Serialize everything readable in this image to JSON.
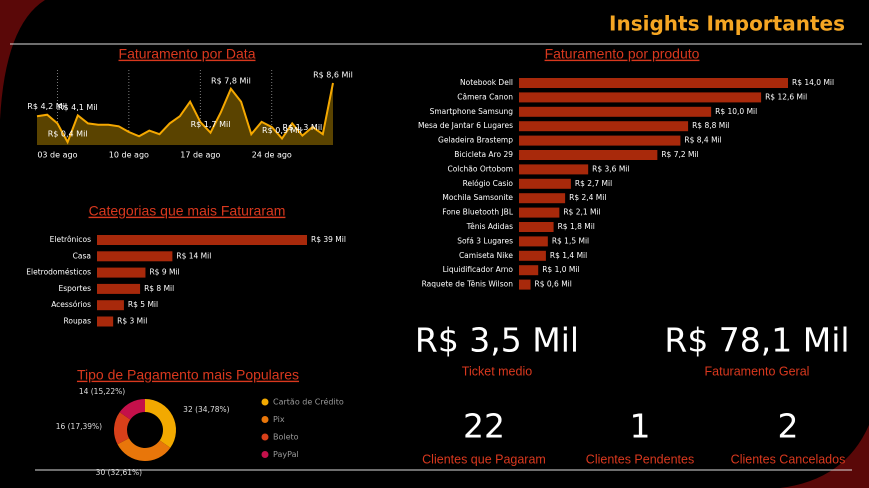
{
  "header": {
    "title": "Insights Importantes"
  },
  "chart_data": [
    {
      "type": "area",
      "title": "Faturamento por Data",
      "color": "#f5a800",
      "fill": "#5a4300",
      "categories": [
        null,
        null,
        "03 de ago",
        null,
        null,
        null,
        null,
        null,
        null,
        "10 de ago",
        null,
        null,
        null,
        null,
        null,
        null,
        "17 de ago",
        null,
        null,
        null,
        null,
        null,
        null,
        "24 de ago",
        null,
        null,
        null,
        null,
        null,
        null
      ],
      "values": [
        4.0,
        4.2,
        3.0,
        0.4,
        4.1,
        3.0,
        2.8,
        2.8,
        2.6,
        1.8,
        1.2,
        2.0,
        1.5,
        3.0,
        4.0,
        6.0,
        3.2,
        1.7,
        4.5,
        7.8,
        6.0,
        1.5,
        3.2,
        2.5,
        0.9,
        3.0,
        1.3,
        2.5,
        1.5,
        8.6
      ],
      "value_labels": [
        null,
        "R$ 4,2 Mil",
        null,
        "R$ 0,4 Mil",
        "R$ 4,1 Mil",
        null,
        null,
        null,
        null,
        null,
        null,
        null,
        null,
        null,
        null,
        null,
        null,
        "R$ 1,7 Mil",
        null,
        "R$ 7,8 Mil",
        null,
        null,
        null,
        null,
        "R$ 0,9 Mil",
        null,
        "R$ 1,3 Mil",
        null,
        null,
        "R$ 8,6 Mil"
      ],
      "grid": true
    },
    {
      "type": "bar",
      "orientation": "horizontal",
      "title": "Faturamento por produto",
      "color": "#a8290b",
      "categories": [
        "Notebook Dell",
        "Câmera Canon",
        "Smartphone Samsung",
        "Mesa de Jantar 6 Lugares",
        "Geladeira Brastemp",
        "Bicicleta Aro 29",
        "Colchão Ortobom",
        "Relógio Casio",
        "Mochila Samsonite",
        "Fone Bluetooth JBL",
        "Tênis Adidas",
        "Sofá 3 Lugares",
        "Camiseta Nike",
        "Liquidificador Arno",
        "Raquete de Tênis Wilson"
      ],
      "values": [
        14.0,
        12.6,
        10.0,
        8.8,
        8.4,
        7.2,
        3.6,
        2.7,
        2.4,
        2.1,
        1.8,
        1.5,
        1.4,
        1.0,
        0.6
      ],
      "value_labels": [
        "R$ 14,0 Mil",
        "R$ 12,6 Mil",
        "R$ 10,0 Mil",
        "R$ 8,8 Mil",
        "R$ 8,4 Mil",
        "R$ 7,2 Mil",
        "R$ 3,6 Mil",
        "R$ 2,7 Mil",
        "R$ 2,4 Mil",
        "R$ 2,1 Mil",
        "R$ 1,8 Mil",
        "R$ 1,5 Mil",
        "R$ 1,4 Mil",
        "R$ 1,0 Mil",
        "R$ 0,6 Mil"
      ]
    },
    {
      "type": "bar",
      "orientation": "horizontal",
      "title": "Categorias que mais Faturaram",
      "color": "#a8290b",
      "categories": [
        "Eletrônicos",
        "Casa",
        "Eletrodomésticos",
        "Esportes",
        "Acessórios",
        "Roupas"
      ],
      "values": [
        39,
        14,
        9,
        8,
        5,
        3
      ],
      "value_labels": [
        "R$ 39 Mil",
        "R$ 14 Mil",
        "R$ 9 Mil",
        "R$ 8 Mil",
        "R$ 5 Mil",
        "R$ 3 Mil"
      ]
    },
    {
      "type": "pie",
      "title": "Tipo de Pagamento mais Populares",
      "categories": [
        "Cartão de Crédito",
        "Pix",
        "Boleto",
        "PayPal"
      ],
      "values": [
        32,
        30,
        16,
        14
      ],
      "value_labels": [
        "32 (34,78%)",
        "30 (32,61%)",
        "16 (17,39%)",
        "14 (15,22%)"
      ],
      "colors": [
        "#f2a900",
        "#e8760a",
        "#d8401a",
        "#c4104a"
      ],
      "legend": "right"
    }
  ],
  "kpis": [
    {
      "value": "R$ 3,5 Mil",
      "label": "Ticket medio"
    },
    {
      "value": "R$ 78,1 Mil",
      "label": "Faturamento Geral"
    },
    {
      "value": 22,
      "label": "Clientes que Pagaram"
    },
    {
      "value": 1,
      "label": "Clientes Pendentes"
    },
    {
      "value": 2,
      "label": "Clientes Cancelados"
    }
  ]
}
